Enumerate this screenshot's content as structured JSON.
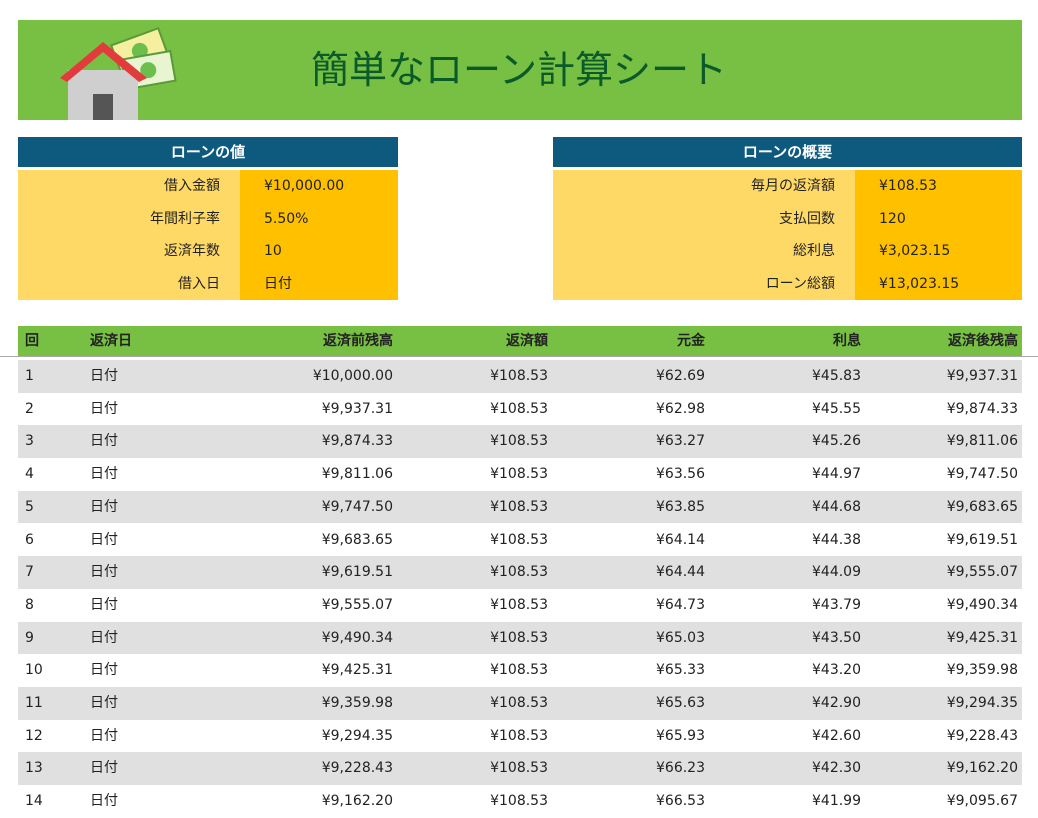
{
  "header": {
    "title": "簡単なローン計算シート"
  },
  "loan_values": {
    "title": "ローンの値",
    "rows": [
      {
        "label": "借入金額",
        "value": "¥10,000.00"
      },
      {
        "label": "年間利子率",
        "value": "5.50%"
      },
      {
        "label": "返済年数",
        "value": "10"
      },
      {
        "label": "借入日",
        "value": "日付"
      }
    ]
  },
  "loan_summary": {
    "title": "ローンの概要",
    "rows": [
      {
        "label": "毎月の返済額",
        "value": "¥108.53"
      },
      {
        "label": "支払回数",
        "value": "120"
      },
      {
        "label": "総利息",
        "value": "¥3,023.15"
      },
      {
        "label": "ローン総額",
        "value": "¥13,023.15"
      }
    ]
  },
  "table": {
    "columns": [
      "回",
      "返済日",
      "返済前残高",
      "返済額",
      "元金",
      "利息",
      "返済後残高"
    ],
    "rows": [
      [
        "1",
        "日付",
        "¥10,000.00",
        "¥108.53",
        "¥62.69",
        "¥45.83",
        "¥9,937.31"
      ],
      [
        "2",
        "日付",
        "¥9,937.31",
        "¥108.53",
        "¥62.98",
        "¥45.55",
        "¥9,874.33"
      ],
      [
        "3",
        "日付",
        "¥9,874.33",
        "¥108.53",
        "¥63.27",
        "¥45.26",
        "¥9,811.06"
      ],
      [
        "4",
        "日付",
        "¥9,811.06",
        "¥108.53",
        "¥63.56",
        "¥44.97",
        "¥9,747.50"
      ],
      [
        "5",
        "日付",
        "¥9,747.50",
        "¥108.53",
        "¥63.85",
        "¥44.68",
        "¥9,683.65"
      ],
      [
        "6",
        "日付",
        "¥9,683.65",
        "¥108.53",
        "¥64.14",
        "¥44.38",
        "¥9,619.51"
      ],
      [
        "7",
        "日付",
        "¥9,619.51",
        "¥108.53",
        "¥64.44",
        "¥44.09",
        "¥9,555.07"
      ],
      [
        "8",
        "日付",
        "¥9,555.07",
        "¥108.53",
        "¥64.73",
        "¥43.79",
        "¥9,490.34"
      ],
      [
        "9",
        "日付",
        "¥9,490.34",
        "¥108.53",
        "¥65.03",
        "¥43.50",
        "¥9,425.31"
      ],
      [
        "10",
        "日付",
        "¥9,425.31",
        "¥108.53",
        "¥65.33",
        "¥43.20",
        "¥9,359.98"
      ],
      [
        "11",
        "日付",
        "¥9,359.98",
        "¥108.53",
        "¥65.63",
        "¥42.90",
        "¥9,294.35"
      ],
      [
        "12",
        "日付",
        "¥9,294.35",
        "¥108.53",
        "¥65.93",
        "¥42.60",
        "¥9,228.43"
      ],
      [
        "13",
        "日付",
        "¥9,228.43",
        "¥108.53",
        "¥66.23",
        "¥42.30",
        "¥9,162.20"
      ],
      [
        "14",
        "日付",
        "¥9,162.20",
        "¥108.53",
        "¥66.53",
        "¥41.99",
        "¥9,095.67"
      ]
    ]
  }
}
